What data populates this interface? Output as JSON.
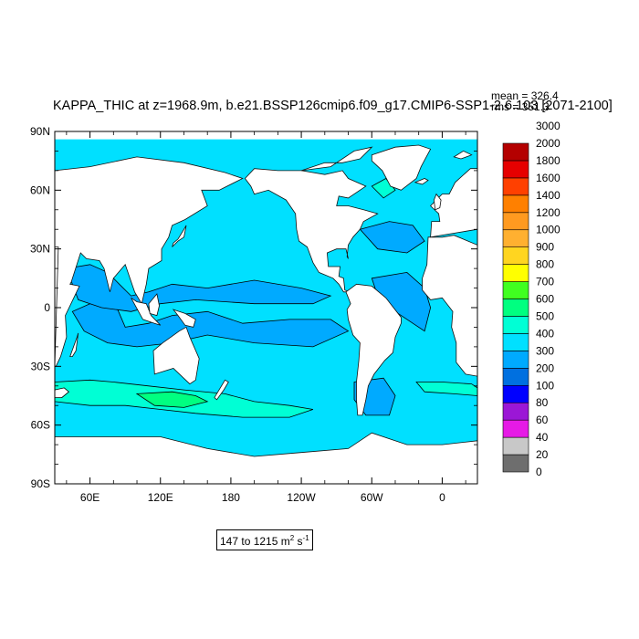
{
  "title": "KAPPA_THIC at z=1968.9m, b.e21.BSSP126cmip6.f09_g17.CMIP6-SSP1-2.6.103 [2071-2100]",
  "stats": {
    "mean": "mean = 326.4",
    "rms": "rms = 351.3"
  },
  "range": {
    "text": "147 to 1215 m",
    "unit_m_exp": "2",
    "unit_s": " s",
    "unit_s_exp": "-1"
  },
  "map": {
    "projection": "cylindrical equidistant",
    "lon_range": [
      30,
      390
    ],
    "lat_range": [
      -90,
      90
    ],
    "lat_labels": [
      "90N",
      "60N",
      "30N",
      "0",
      "30S",
      "60S",
      "90S"
    ],
    "lon_labels": [
      "60E",
      "120E",
      "180",
      "120W",
      "60W",
      "0"
    ],
    "land_color": "#ffffff",
    "contour_color": "#000000"
  },
  "colorbar": {
    "levels": [
      "0",
      "20",
      "40",
      "60",
      "80",
      "100",
      "200",
      "300",
      "400",
      "500",
      "600",
      "700",
      "800",
      "900",
      "1000",
      "1200",
      "1400",
      "1600",
      "1800",
      "2000",
      "3000"
    ],
    "colors": [
      "#6e6e6e",
      "#c8c8c8",
      "#e61ae6",
      "#9b17d6",
      "#0000ff",
      "#0070e0",
      "#00aaff",
      "#00e0ff",
      "#00ffd5",
      "#00ff80",
      "#40ff20",
      "#ffff00",
      "#ffd520",
      "#ffb030",
      "#ff9a20",
      "#ff8000",
      "#ff4000",
      "#e60000",
      "#b40000"
    ]
  },
  "chart_data": {
    "type": "heatmap",
    "title": "KAPPA_THIC at z=1968.9m, b.e21.BSSP126cmip6.f09_g17.CMIP6-SSP1-2.6.103 [2071-2100]",
    "variable": "KAPPA_THIC",
    "units": "m2 s-1",
    "depth": "z=1968.9m",
    "period": "2071-2100",
    "mean": 326.4,
    "rms": 351.3,
    "min": 147,
    "max": 1215,
    "xlim": [
      30,
      390
    ],
    "ylim": [
      -90,
      90
    ],
    "levels": [
      0,
      20,
      40,
      60,
      80,
      100,
      200,
      300,
      400,
      500,
      600,
      700,
      800,
      900,
      1000,
      1200,
      1400,
      1600,
      1800,
      2000,
      3000
    ],
    "regions": [
      {
        "region": "Arctic Ocean",
        "band": "300-400"
      },
      {
        "region": "North Pacific",
        "band": "300-400"
      },
      {
        "region": "Tropical Pacific",
        "band": "200-300"
      },
      {
        "region": "Tropical Indian Ocean",
        "band": "200-300"
      },
      {
        "region": "North Atlantic",
        "band": "300-400"
      },
      {
        "region": "Labrador Sea",
        "band": "400-500"
      },
      {
        "region": "South Pacific",
        "band": "300-400"
      },
      {
        "region": "South Indian Ocean",
        "band": "300-400"
      },
      {
        "region": "Southern Ocean south of Australia",
        "band": "400-500"
      },
      {
        "region": "Southern Ocean near Tasmania",
        "band": "500-600"
      },
      {
        "region": "South Atlantic (Argentine Basin)",
        "band": "200-300"
      }
    ]
  }
}
